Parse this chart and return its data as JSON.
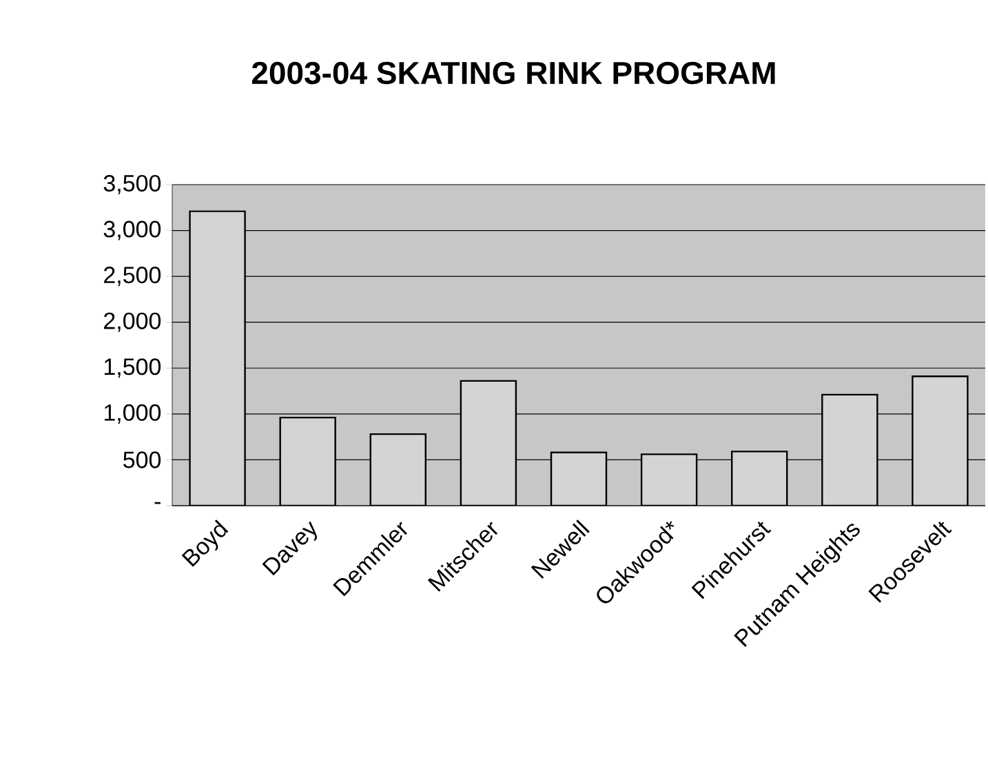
{
  "chart_data": {
    "type": "bar",
    "title": "2003-04 SKATING RINK PROGRAM",
    "categories": [
      "Boyd",
      "Davey",
      "Demmler",
      "Mitscher",
      "Newell",
      "Oakwood*",
      "Pinehurst",
      "Putnam Heights",
      "Roosevelt"
    ],
    "values": [
      3210,
      960,
      780,
      1360,
      580,
      560,
      590,
      1210,
      1410
    ],
    "color": "#d4d4d4",
    "ylim": [
      0,
      3500
    ],
    "yticks": [
      {
        "value": 0,
        "label": "-"
      },
      500,
      {
        "value": 1000,
        "label": "1,000"
      },
      {
        "value": 1500,
        "label": "1,500"
      },
      {
        "value": 2000,
        "label": "2,000"
      },
      {
        "value": 2500,
        "label": "2,500"
      },
      {
        "value": 3000,
        "label": "3,000"
      },
      {
        "value": 3500,
        "label": "3,500"
      }
    ],
    "grid": "y"
  }
}
